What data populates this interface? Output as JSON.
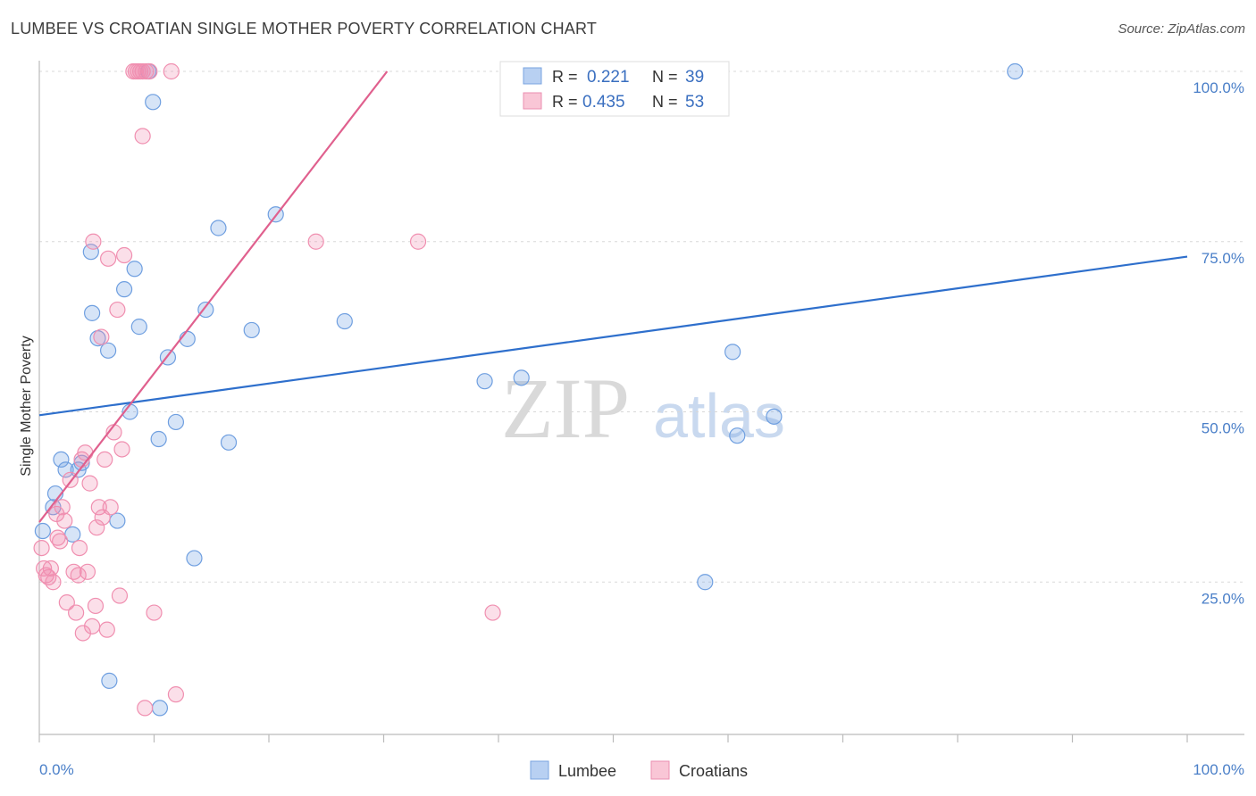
{
  "title": "LUMBEE VS CROATIAN SINGLE MOTHER POVERTY CORRELATION CHART",
  "source": "Source: ZipAtlas.com",
  "watermark": {
    "zip": "ZIP",
    "atlas": "atlas"
  },
  "chart_data": {
    "type": "scatter",
    "xlabel": "",
    "ylabel": "Single Mother Poverty",
    "xlim": [
      0,
      100
    ],
    "ylim": [
      0,
      100
    ],
    "x_tick_labels": [
      {
        "value": 0,
        "label": "0.0%"
      },
      {
        "value": 100,
        "label": "100.0%"
      }
    ],
    "y_tick_labels": [
      {
        "value": 25,
        "label": "25.0%"
      },
      {
        "value": 50,
        "label": "50.0%"
      },
      {
        "value": 75,
        "label": "75.0%"
      },
      {
        "value": 100,
        "label": "100.0%"
      }
    ],
    "grid": true,
    "legend_position": "top-center",
    "stats": [
      {
        "series": "Lumbee",
        "r_label": "R =",
        "r_value": "0.221",
        "n_label": "N =",
        "n_value": "39"
      },
      {
        "series": "Croatians",
        "r_label": "R =",
        "r_value": "0.435",
        "n_label": "N =",
        "n_value": "53"
      }
    ],
    "series": [
      {
        "name": "Lumbee",
        "color": "#6f9fe0",
        "line_color": "#2e6fcc",
        "trend": {
          "x0": 0,
          "y0": 49.5,
          "x1": 100,
          "y1": 72.8
        },
        "points": [
          [
            0.3,
            32.5
          ],
          [
            1.2,
            36
          ],
          [
            1.4,
            38
          ],
          [
            1.9,
            43
          ],
          [
            2.3,
            41.5
          ],
          [
            2.9,
            32
          ],
          [
            3.4,
            41.5
          ],
          [
            3.7,
            42.5
          ],
          [
            4.5,
            73.5
          ],
          [
            4.6,
            64.5
          ],
          [
            5.1,
            60.8
          ],
          [
            6.0,
            59
          ],
          [
            6.8,
            34
          ],
          [
            7.4,
            68
          ],
          [
            7.9,
            50
          ],
          [
            8.3,
            71
          ],
          [
            8.7,
            62.5
          ],
          [
            9.5,
            100
          ],
          [
            9.9,
            95.5
          ],
          [
            10.4,
            46
          ],
          [
            10.5,
            6.5
          ],
          [
            11.2,
            58
          ],
          [
            11.9,
            48.5
          ],
          [
            12.9,
            60.7
          ],
          [
            13.5,
            28.5
          ],
          [
            14.5,
            65
          ],
          [
            15.6,
            77
          ],
          [
            16.5,
            45.5
          ],
          [
            18.5,
            62
          ],
          [
            20.6,
            79
          ],
          [
            26.6,
            63.3
          ],
          [
            38.8,
            54.5
          ],
          [
            42,
            55
          ],
          [
            58,
            25
          ],
          [
            60.4,
            58.8
          ],
          [
            60.8,
            46.5
          ],
          [
            64,
            49.3
          ],
          [
            85,
            100
          ],
          [
            6.1,
            10.5
          ]
        ]
      },
      {
        "name": "Croatians",
        "color": "#f08fb0",
        "line_color": "#e0608e",
        "trend": {
          "x0": 0,
          "y0": 33.8,
          "x1": 30.3,
          "y1": 100
        },
        "points": [
          [
            0.2,
            30
          ],
          [
            0.4,
            27
          ],
          [
            0.6,
            26
          ],
          [
            0.8,
            25.7
          ],
          [
            1,
            27
          ],
          [
            1.2,
            25
          ],
          [
            1.5,
            35
          ],
          [
            1.6,
            31.5
          ],
          [
            1.8,
            31
          ],
          [
            2,
            36
          ],
          [
            2.2,
            34
          ],
          [
            2.4,
            22
          ],
          [
            2.7,
            40
          ],
          [
            3,
            26.5
          ],
          [
            3.2,
            20.5
          ],
          [
            3.4,
            26
          ],
          [
            3.5,
            30
          ],
          [
            3.7,
            43
          ],
          [
            3.8,
            17.5
          ],
          [
            4,
            44
          ],
          [
            4.2,
            26.5
          ],
          [
            4.4,
            39.5
          ],
          [
            4.6,
            18.5
          ],
          [
            4.7,
            75
          ],
          [
            4.9,
            21.5
          ],
          [
            5,
            33
          ],
          [
            5.2,
            36
          ],
          [
            5.4,
            61
          ],
          [
            5.5,
            34.5
          ],
          [
            5.7,
            43
          ],
          [
            5.9,
            18
          ],
          [
            6.0,
            72.5
          ],
          [
            6.2,
            36
          ],
          [
            6.5,
            47
          ],
          [
            6.8,
            65
          ],
          [
            7.0,
            23
          ],
          [
            7.2,
            44.5
          ],
          [
            7.4,
            73
          ],
          [
            8.2,
            100
          ],
          [
            8.4,
            100
          ],
          [
            8.6,
            100
          ],
          [
            8.8,
            100
          ],
          [
            9.0,
            100
          ],
          [
            9.3,
            100
          ],
          [
            9.6,
            100
          ],
          [
            9.0,
            90.5
          ],
          [
            10.0,
            20.5
          ],
          [
            9.2,
            6.5
          ],
          [
            11.9,
            8.5
          ],
          [
            11.5,
            100
          ],
          [
            24.1,
            75
          ],
          [
            33,
            75
          ],
          [
            39.5,
            20.5
          ]
        ]
      }
    ]
  },
  "legend": {
    "bottom": [
      {
        "label": "Lumbee"
      },
      {
        "label": "Croatians"
      }
    ]
  }
}
